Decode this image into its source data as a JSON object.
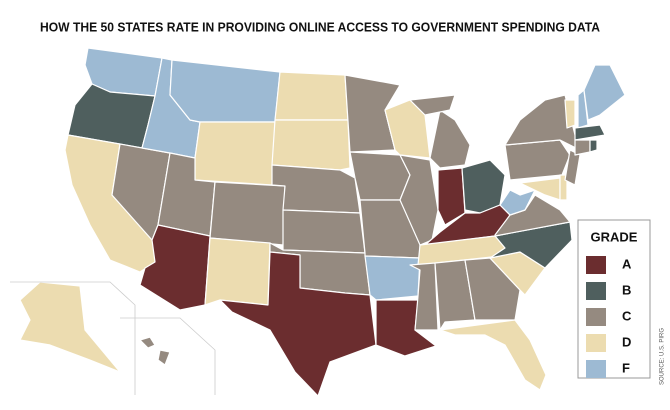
{
  "title": "HOW THE 50 STATES RATE IN PROVIDING ONLINE ACCESS TO GOVERNMENT SPENDING DATA",
  "source": "SOURCE: U.S. PIRG",
  "legend": {
    "title": "GRADE",
    "items": [
      {
        "label": "A",
        "color": "#6b2d2f"
      },
      {
        "label": "B",
        "color": "#4f5f5e"
      },
      {
        "label": "C",
        "color": "#958a80"
      },
      {
        "label": "D",
        "color": "#ecdcb0"
      },
      {
        "label": "F",
        "color": "#9dbad3"
      }
    ]
  },
  "map": {
    "regions": [
      "F",
      "B",
      "D",
      "C",
      "F",
      "F",
      "D",
      "C",
      "C",
      "A",
      "D",
      "D",
      "D",
      "C",
      "C",
      "C",
      "A",
      "C",
      "C",
      "C",
      "F",
      "A",
      "D",
      "C",
      "C",
      "C",
      "A",
      "B",
      "A",
      "D",
      "C",
      "C",
      "C",
      "D",
      "D",
      "B",
      "C",
      "F",
      "C",
      "C",
      "D",
      "D",
      "C",
      "D",
      "F",
      "F",
      "B",
      "C",
      "B",
      "D",
      "C"
    ]
  }
}
